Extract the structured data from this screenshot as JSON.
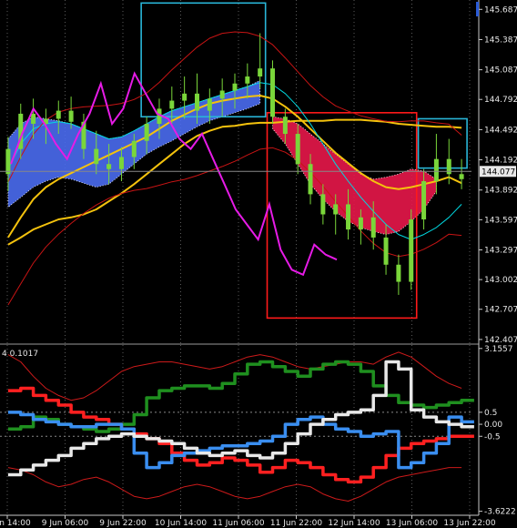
{
  "chart_data": [
    {
      "type": "line",
      "name": "price-panel",
      "price_ticks": [
        "145.687",
        "145.387",
        "145.087",
        "144.792",
        "144.492",
        "144.192",
        "143.892",
        "143.597",
        "143.297",
        "143.002",
        "142.707",
        "142.407"
      ],
      "price_tick_values": [
        145.687,
        145.387,
        145.087,
        144.792,
        144.492,
        144.192,
        143.892,
        143.597,
        143.297,
        143.002,
        142.707,
        142.407
      ],
      "y_range": [
        142.37,
        145.78
      ],
      "current_price": "144.077",
      "current_price_value": 144.077,
      "candles_approx": [
        [
          144.05,
          144.42,
          143.88,
          144.3
        ],
        [
          144.3,
          144.75,
          144.2,
          144.65
        ],
        [
          144.65,
          144.8,
          144.4,
          144.55
        ],
        [
          144.55,
          144.7,
          144.35,
          144.6
        ],
        [
          144.6,
          144.78,
          144.45,
          144.68
        ],
        [
          144.68,
          144.82,
          144.5,
          144.57
        ],
        [
          144.57,
          144.65,
          144.2,
          144.3
        ],
        [
          144.3,
          144.48,
          144.05,
          144.15
        ],
        [
          144.15,
          144.35,
          143.95,
          144.1
        ],
        [
          144.1,
          144.32,
          143.98,
          144.22
        ],
        [
          144.22,
          144.45,
          144.1,
          144.38
        ],
        [
          144.38,
          144.62,
          144.25,
          144.55
        ],
        [
          144.55,
          144.8,
          144.4,
          144.7
        ],
        [
          144.7,
          144.92,
          144.55,
          144.78
        ],
        [
          144.78,
          145.02,
          144.6,
          144.85
        ],
        [
          144.85,
          145.05,
          144.55,
          144.68
        ],
        [
          144.68,
          144.9,
          144.55,
          144.8
        ],
        [
          144.8,
          145.0,
          144.62,
          144.88
        ],
        [
          144.88,
          145.05,
          144.7,
          144.95
        ],
        [
          144.95,
          145.15,
          144.8,
          145.02
        ],
        [
          145.02,
          145.45,
          144.9,
          145.1
        ],
        [
          145.1,
          145.18,
          144.55,
          144.62
        ],
        [
          144.62,
          144.7,
          144.35,
          144.45
        ],
        [
          144.45,
          144.55,
          144.05,
          144.15
        ],
        [
          144.15,
          144.25,
          143.75,
          143.85
        ],
        [
          143.85,
          143.95,
          143.55,
          143.65
        ],
        [
          143.65,
          143.85,
          143.45,
          143.75
        ],
        [
          143.75,
          143.9,
          143.4,
          143.5
        ],
        [
          143.5,
          143.7,
          143.35,
          143.62
        ],
        [
          143.62,
          143.78,
          143.3,
          143.42
        ],
        [
          143.42,
          143.55,
          143.05,
          143.15
        ],
        [
          143.15,
          143.25,
          142.85,
          142.98
        ],
        [
          142.98,
          143.7,
          142.9,
          143.6
        ],
        [
          143.6,
          144.1,
          143.5,
          143.98
        ],
        [
          143.98,
          144.45,
          143.85,
          144.2
        ],
        [
          144.2,
          144.4,
          143.95,
          144.05
        ],
        [
          144.05,
          144.2,
          143.9,
          144.0
        ]
      ],
      "moving_averages": [
        {
          "color": "#f4c20d",
          "values": [
            143.35,
            143.42,
            143.5,
            143.55,
            143.6,
            143.62,
            143.65,
            143.7,
            143.78,
            143.86,
            143.95,
            144.05,
            144.15,
            144.25,
            144.35,
            144.43,
            144.48,
            144.52,
            144.53,
            144.55,
            144.56,
            144.56,
            144.57,
            144.58,
            144.58,
            144.58,
            144.59,
            144.59,
            144.59,
            144.58,
            144.57,
            144.55,
            144.54,
            144.53,
            144.52,
            144.52,
            144.51
          ]
        },
        {
          "color": "#f4c20d",
          "values": [
            143.42,
            143.62,
            143.8,
            143.92,
            144.0,
            144.06,
            144.12,
            144.18,
            144.24,
            144.3,
            144.36,
            144.42,
            144.5,
            144.58,
            144.64,
            144.7,
            144.75,
            144.78,
            144.8,
            144.82,
            144.83,
            144.8,
            144.72,
            144.62,
            144.5,
            144.38,
            144.26,
            144.16,
            144.06,
            143.98,
            143.92,
            143.9,
            143.92,
            143.95,
            143.98,
            144.02,
            143.96
          ]
        },
        {
          "color": "#00d8e0",
          "values": [
            144.1,
            144.35,
            144.5,
            144.55,
            144.57,
            144.55,
            144.5,
            144.45,
            144.4,
            144.42,
            144.48,
            144.55,
            144.62,
            144.68,
            144.72,
            144.76,
            144.8,
            144.84,
            144.88,
            144.92,
            144.96,
            144.94,
            144.85,
            144.72,
            144.55,
            144.35,
            144.15,
            143.98,
            143.82,
            143.68,
            143.55,
            143.45,
            143.4,
            143.45,
            143.52,
            143.62,
            143.75
          ]
        }
      ],
      "cloud_blue_approx": {
        "upper": [
          144.4,
          144.55,
          144.62,
          144.6,
          144.58,
          144.55,
          144.5,
          144.45,
          144.4,
          144.42,
          144.48,
          144.55,
          144.62,
          144.68,
          144.72,
          144.76,
          144.8,
          144.84,
          144.88,
          144.92,
          144.98
        ],
        "lower": [
          143.72,
          143.82,
          143.92,
          143.98,
          144.02,
          144.0,
          143.96,
          143.92,
          143.95,
          144.05,
          144.15,
          144.25,
          144.32,
          144.38,
          144.45,
          144.52,
          144.58,
          144.62,
          144.66,
          144.7,
          144.75
        ]
      },
      "cloud_red_approx": {
        "upper": [
          144.62,
          144.6,
          144.55,
          144.45,
          144.35,
          144.25,
          144.15,
          144.05,
          144.0,
          144.02,
          144.05,
          144.1,
          144.08,
          144.0
        ],
        "lower": [
          144.5,
          144.35,
          144.15,
          143.95,
          143.8,
          143.68,
          143.58,
          143.52,
          143.48,
          143.45,
          143.48,
          143.58,
          143.7,
          143.88
        ]
      },
      "magenta_line_approx": [
        144.15,
        144.45,
        144.7,
        144.55,
        144.35,
        144.2,
        144.45,
        144.65,
        144.95,
        144.55,
        144.7,
        145.05,
        144.85,
        144.65,
        144.6,
        144.4,
        144.3,
        144.45,
        144.2,
        143.95,
        143.7,
        143.55,
        143.4,
        143.75,
        143.3,
        143.1,
        143.05,
        143.35,
        143.25,
        143.2
      ],
      "boxes": [
        {
          "color": "#29b6d8",
          "x_idx": [
            11,
            20
          ],
          "y": [
            144.62,
            145.75
          ]
        },
        {
          "color": "#ff1a1a",
          "x_idx": [
            21,
            32
          ],
          "y": [
            142.62,
            144.66
          ]
        },
        {
          "color": "#29b6d8",
          "x_idx": [
            33,
            36
          ],
          "y": [
            144.11,
            144.6
          ]
        }
      ]
    },
    {
      "type": "line",
      "name": "oscillator-panel",
      "header_label": "4 0.1017",
      "ticks": [
        "3.1557",
        "0.5",
        "0.00",
        "-0.5",
        "-3.6222"
      ],
      "tick_values": [
        3.1557,
        0.5,
        0.0,
        -0.5,
        -3.6222
      ],
      "y_range": [
        -3.75,
        3.3
      ],
      "series": [
        {
          "color": "#1f8f1f",
          "values": [
            -0.2,
            -0.1,
            0.3,
            0.2,
            0.0,
            -0.1,
            -0.2,
            -0.3,
            -0.2,
            0.0,
            0.4,
            1.1,
            1.4,
            1.5,
            1.6,
            1.6,
            1.5,
            1.7,
            2.1,
            2.5,
            2.6,
            2.4,
            2.2,
            2.0,
            2.3,
            2.5,
            2.6,
            2.5,
            2.2,
            1.6,
            1.2,
            0.9,
            0.8,
            0.7,
            0.8,
            0.9,
            1.0
          ]
        },
        {
          "color": "#ff2020",
          "values": [
            1.4,
            1.5,
            1.2,
            1.0,
            0.8,
            0.5,
            0.3,
            0.2,
            0.0,
            -0.2,
            -0.4,
            -0.6,
            -0.8,
            -1.2,
            -1.5,
            -1.7,
            -1.6,
            -1.4,
            -1.5,
            -1.7,
            -2.0,
            -1.8,
            -1.5,
            -1.6,
            -1.8,
            -2.1,
            -2.3,
            -2.4,
            -2.2,
            -1.8,
            -1.3,
            -1.0,
            -0.8,
            -0.7,
            -0.6,
            -0.5,
            -0.5
          ]
        },
        {
          "color": "#3a8ef0",
          "values": [
            0.5,
            0.4,
            0.2,
            0.1,
            0.0,
            -0.1,
            -0.1,
            0.0,
            0.0,
            -0.2,
            -1.2,
            -1.8,
            -1.6,
            -1.3,
            -1.2,
            -1.1,
            -1.0,
            -0.9,
            -0.9,
            -0.8,
            -0.7,
            -0.5,
            0.0,
            0.2,
            0.3,
            0.0,
            -0.2,
            -0.3,
            -0.5,
            -0.4,
            -0.3,
            -1.8,
            -1.6,
            -1.2,
            -0.8,
            0.3,
            0.1
          ]
        },
        {
          "color": "#e8e8e8",
          "values": [
            -2.1,
            -1.9,
            -1.7,
            -1.5,
            -1.3,
            -1.0,
            -0.8,
            -0.6,
            -0.5,
            -0.4,
            -0.5,
            -0.6,
            -0.7,
            -0.8,
            -1.0,
            -1.2,
            -1.3,
            -1.2,
            -1.1,
            -1.3,
            -1.4,
            -1.2,
            -0.8,
            -0.4,
            0.0,
            0.2,
            0.4,
            0.5,
            0.6,
            1.2,
            2.6,
            2.3,
            0.6,
            0.3,
            0.1,
            0.0,
            -0.1
          ]
        }
      ],
      "bands_approx": [
        {
          "color": "#cc1a1a",
          "values": [
            2.9,
            2.6,
            2.0,
            1.5,
            1.2,
            1.0,
            1.1,
            1.4,
            1.8,
            2.2,
            2.4,
            2.5,
            2.6,
            2.6,
            2.5,
            2.4,
            2.3,
            2.4,
            2.6,
            2.8,
            2.9,
            2.8,
            2.6,
            2.4,
            2.3,
            2.4,
            2.5,
            2.6,
            2.6,
            2.5,
            2.8,
            3.0,
            2.8,
            2.4,
            2.0,
            1.7,
            1.5
          ]
        },
        {
          "color": "#cc1a1a",
          "values": [
            -1.8,
            -1.9,
            -2.1,
            -2.4,
            -2.6,
            -2.5,
            -2.3,
            -2.2,
            -2.4,
            -2.7,
            -3.0,
            -3.1,
            -3.0,
            -2.8,
            -2.6,
            -2.5,
            -2.6,
            -2.8,
            -3.0,
            -3.1,
            -3.0,
            -2.8,
            -2.6,
            -2.5,
            -2.6,
            -2.9,
            -3.1,
            -3.2,
            -3.0,
            -2.7,
            -2.4,
            -2.2,
            -2.1,
            -2.0,
            -1.9,
            -1.8,
            -1.8
          ]
        }
      ]
    }
  ],
  "x_axis": {
    "labels": [
      "6 Jun 14:00",
      "9 Jun 06:00",
      "9 Jun 22:00",
      "10 Jun 14:00",
      "11 Jun 06:00",
      "11 Jun 22:00",
      "12 Jun 14:00",
      "13 Jun 06:00",
      "13 Jun 22:00"
    ]
  },
  "colors": {
    "background": "#000000",
    "axis": "#d0d0d0",
    "grid": "#5a5a5a",
    "candle": "#7ad63a",
    "cloud_blue": "#4a6cf0",
    "cloud_red": "#e8174a",
    "magenta": "#e61be6"
  }
}
